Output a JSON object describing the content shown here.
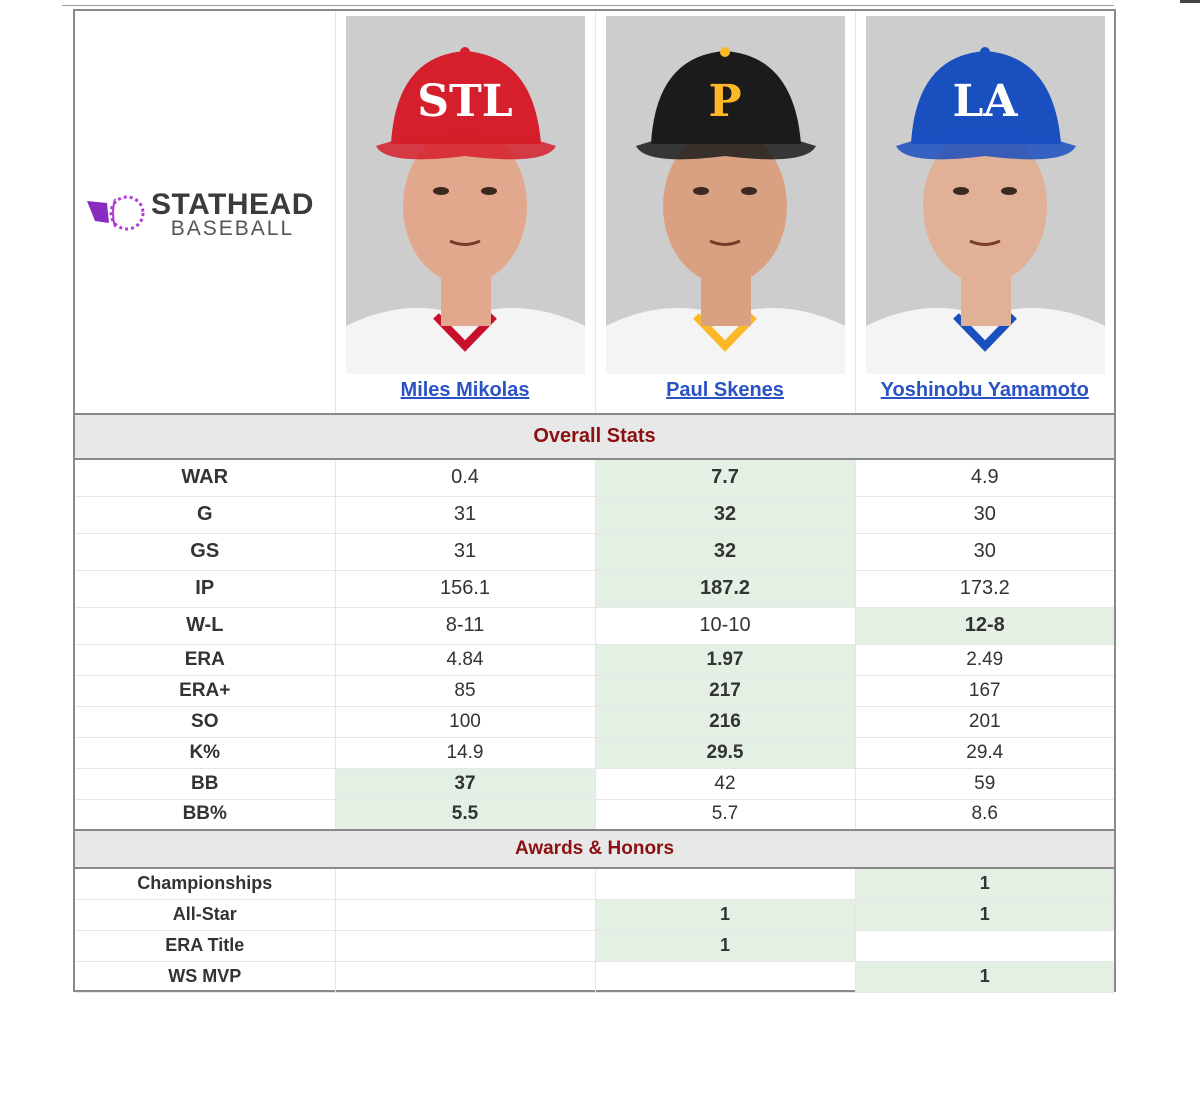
{
  "brand": {
    "top": "STATHEAD",
    "bottom": "BASEBALL"
  },
  "players": [
    {
      "name": "Miles Mikolas",
      "cap_color": "#d61f2c",
      "cap_logo": "STL",
      "logo_color": "#ffffff",
      "button_color": "#d61f2c",
      "jersey_color": "#f4f4f4",
      "trim_color": "#c8102e",
      "skin": "#e2a88d"
    },
    {
      "name": "Paul Skenes",
      "cap_color": "#1b1b1b",
      "cap_logo": "P",
      "logo_color": "#fdb827",
      "button_color": "#fdb827",
      "jersey_color": "#f4f4f4",
      "trim_color": "#fdb827",
      "skin": "#d9a182"
    },
    {
      "name": "Yoshinobu Yamamoto",
      "cap_color": "#1a4fbf",
      "cap_logo": "LA",
      "logo_color": "#ffffff",
      "button_color": "#1a4fbf",
      "jersey_color": "#f4f4f4",
      "trim_color": "#1a4fbf",
      "skin": "#e0b196"
    }
  ],
  "sections": {
    "overall": "Overall Stats",
    "awards": "Awards & Honors"
  },
  "stats": [
    {
      "label": "WAR",
      "values": [
        "0.4",
        "7.7",
        "4.9"
      ],
      "best": 1
    },
    {
      "label": "G",
      "values": [
        "31",
        "32",
        "30"
      ],
      "best": 1
    },
    {
      "label": "GS",
      "values": [
        "31",
        "32",
        "30"
      ],
      "best": 1
    },
    {
      "label": "IP",
      "values": [
        "156.1",
        "187.2",
        "173.2"
      ],
      "best": 1
    },
    {
      "label": "W-L",
      "values": [
        "8-11",
        "10-10",
        "12-8"
      ],
      "best": 2
    },
    {
      "label": "ERA",
      "values": [
        "4.84",
        "1.97",
        "2.49"
      ],
      "best": 1
    },
    {
      "label": "ERA+",
      "values": [
        "85",
        "217",
        "167"
      ],
      "best": 1
    },
    {
      "label": "SO",
      "values": [
        "100",
        "216",
        "201"
      ],
      "best": 1
    },
    {
      "label": "K%",
      "values": [
        "14.9",
        "29.5",
        "29.4"
      ],
      "best": 1
    },
    {
      "label": "BB",
      "values": [
        "37",
        "42",
        "59"
      ],
      "best": 0
    },
    {
      "label": "BB%",
      "values": [
        "5.5",
        "5.7",
        "8.6"
      ],
      "best": 0
    }
  ],
  "awards": [
    {
      "label": "Championships",
      "values": [
        "",
        "",
        "1"
      ],
      "best": [
        2
      ]
    },
    {
      "label": "All-Star",
      "values": [
        "",
        "1",
        "1"
      ],
      "best": [
        1,
        2
      ]
    },
    {
      "label": "ERA Title",
      "values": [
        "",
        "1",
        ""
      ],
      "best": [
        1
      ]
    },
    {
      "label": "WS MVP",
      "values": [
        "",
        "",
        "1"
      ],
      "best": [
        2
      ]
    }
  ]
}
